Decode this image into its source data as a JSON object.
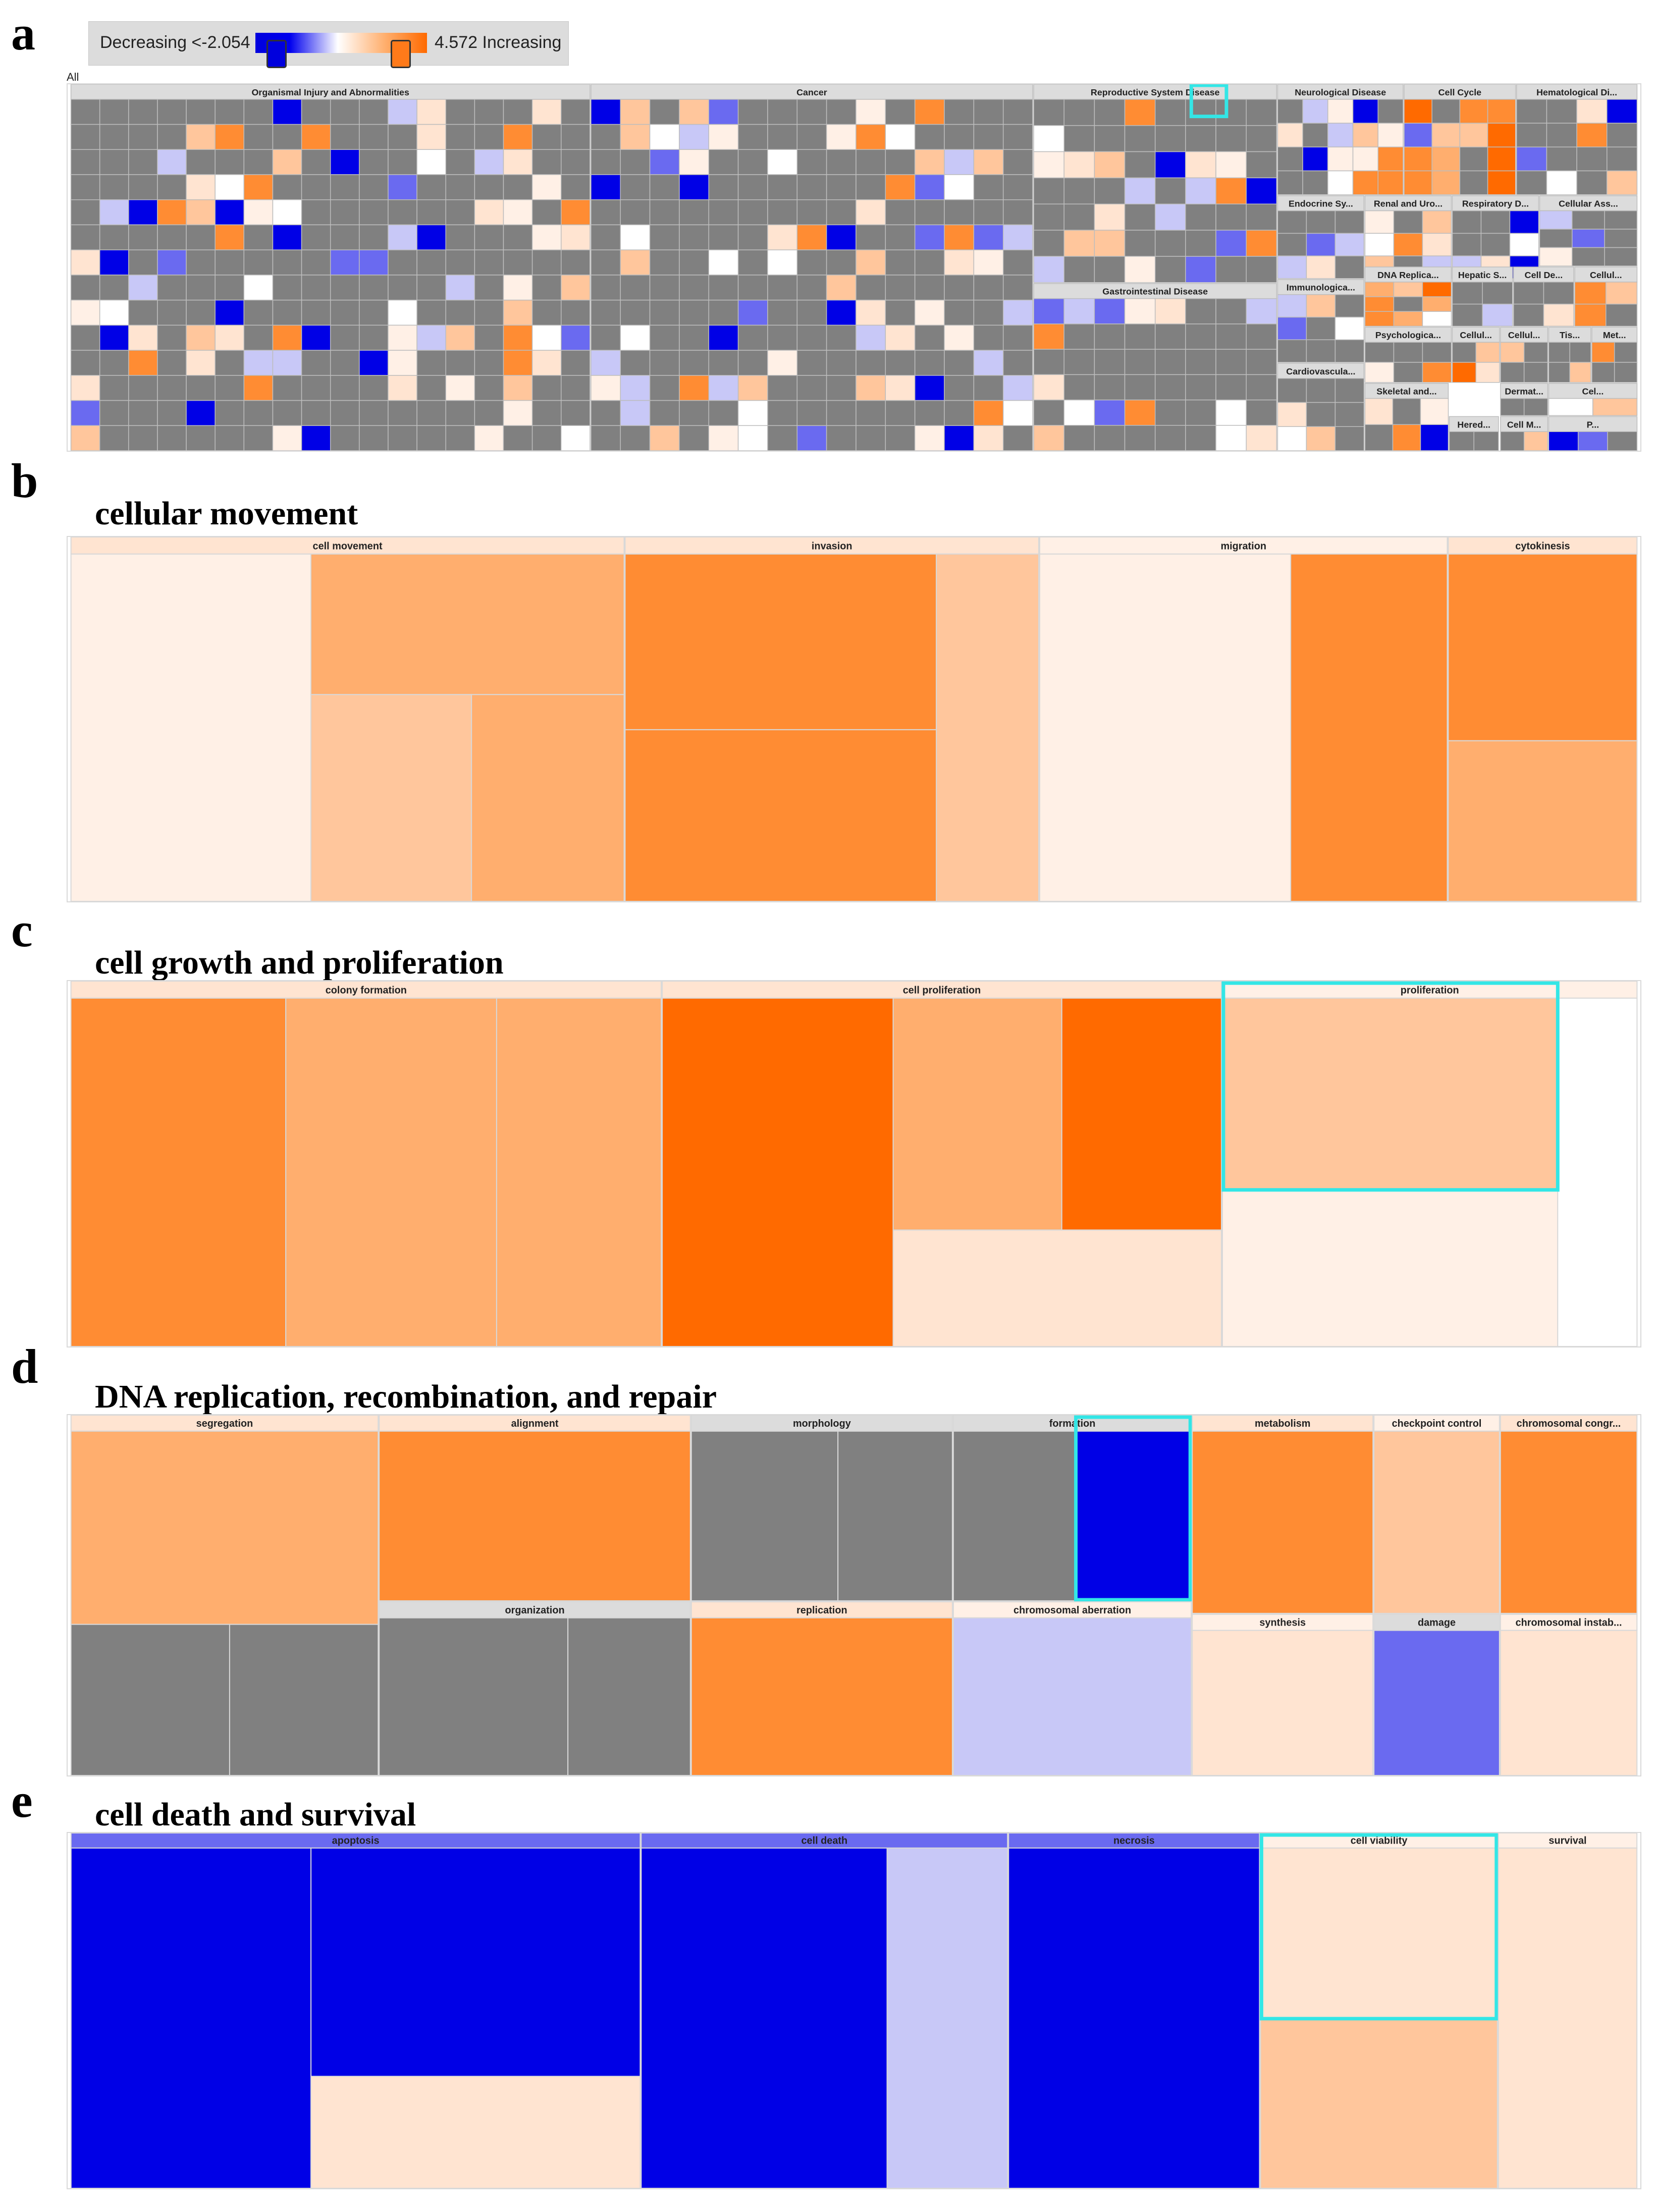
{
  "legend": {
    "decreasing_label": "Decreasing <-2.054",
    "increasing_label": "4.572 Increasing"
  },
  "panels": [
    {
      "letter": "a",
      "title": "",
      "root_label": "All"
    },
    {
      "letter": "b",
      "title": "cellular movement"
    },
    {
      "letter": "c",
      "title": "cell growth and proliferation"
    },
    {
      "letter": "d",
      "title": "DNA replication, recombination, and repair"
    },
    {
      "letter": "e",
      "title": "cell death and survival"
    }
  ],
  "colors": {
    "grey": "#808080",
    "blue_strong": "#0000e6",
    "blue_medium": "#6a6af0",
    "blue_light": "#c8c8f7",
    "orange_strong": "#ff6a00",
    "orange_medium": "#ff8c33",
    "orange_light": "#ffae6e",
    "orange_pale": "#ffc69c",
    "peach": "#ffe4d1",
    "peach_pale": "#fff0e6",
    "header": "#dcdcdc",
    "highlight": "#33e6e6"
  },
  "chart_data": [
    {
      "panel": "a",
      "type": "heatmap",
      "title": "All",
      "categories": [
        "Organismal Injury and Abnormalities",
        "Cancer",
        "Reproductive System Disease",
        "Neurological Disease",
        "Cell Cycle",
        "Hematological Di...",
        "Gastrointestinal Disease",
        "Endocrine Sy...",
        "Renal and Uro...",
        "Respiratory D...",
        "Cellular Ass...",
        "Immunologica...",
        "DNA Replica...",
        "Hepatic S...",
        "Cell De...",
        "Cellul...",
        "Psychologica...",
        "Cellul...",
        "Cellul...",
        "Tis...",
        "Met...",
        "Cardiovascula...",
        "Cel...",
        "Dermat...",
        "Skeletal and...",
        "Hered...",
        "Cell M...",
        "P..."
      ],
      "value_range": [
        -2.054,
        4.572
      ]
    },
    {
      "panel": "b",
      "type": "heatmap",
      "title": "cellular movement",
      "categories": [
        "cell movement",
        "invasion",
        "migration",
        "cytokinesis"
      ]
    },
    {
      "panel": "c",
      "type": "heatmap",
      "title": "cell growth and proliferation",
      "categories": [
        "colony formation",
        "cell proliferation",
        "proliferation"
      ]
    },
    {
      "panel": "d",
      "type": "heatmap",
      "title": "DNA replication, recombination, and repair",
      "categories": [
        "segregation",
        "alignment",
        "morphology",
        "formation",
        "metabolism",
        "checkpoint control",
        "chromosomal congr...",
        "organization",
        "replication",
        "chromosomal aberration",
        "synthesis",
        "damage",
        "chromosomal instab..."
      ]
    },
    {
      "panel": "e",
      "type": "heatmap",
      "title": "cell death and survival",
      "categories": [
        "apoptosis",
        "cell death",
        "necrosis",
        "cell viability",
        "survival"
      ]
    }
  ]
}
